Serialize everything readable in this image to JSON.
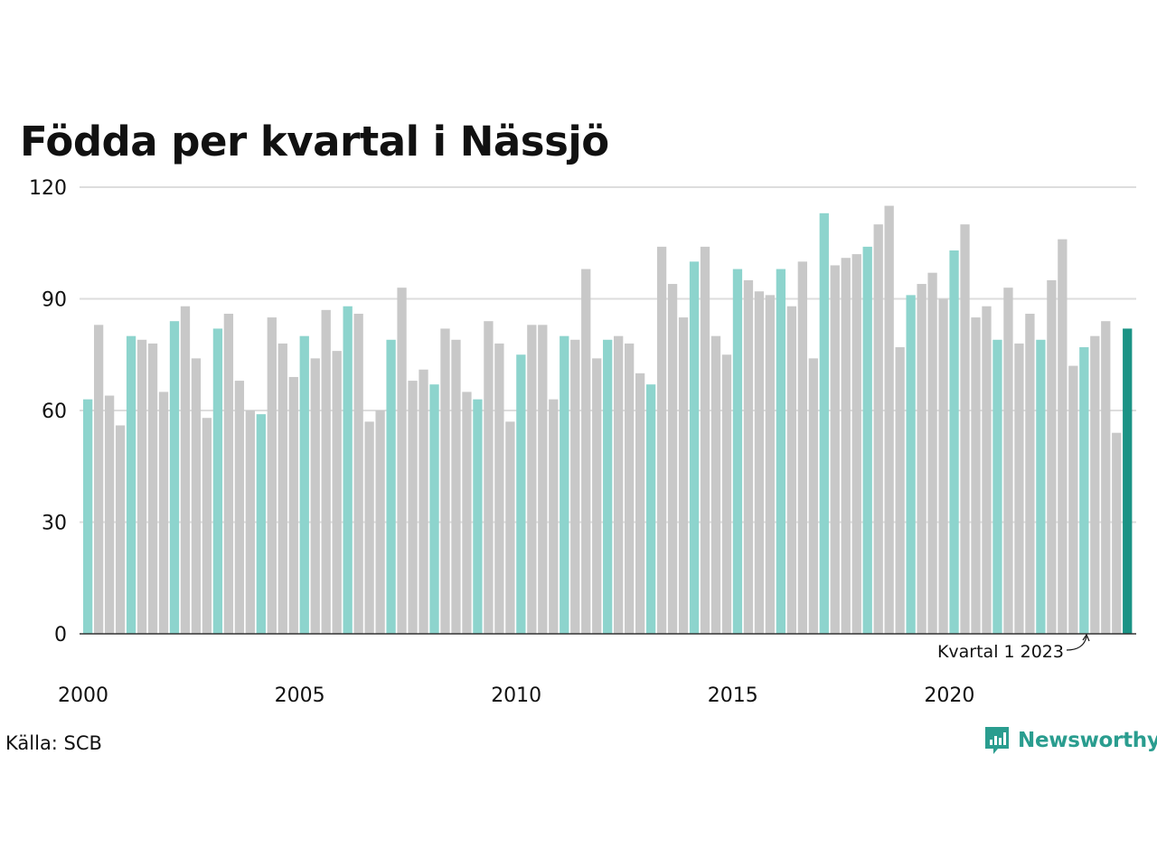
{
  "chart_data": {
    "type": "bar",
    "title": "Födda per kvartal i Nässjö",
    "ylim": [
      0,
      120
    ],
    "yticks": [
      "0",
      "30",
      "60",
      "90",
      "120"
    ],
    "xticks": [
      "2000",
      "2005",
      "2010",
      "2015",
      "2020"
    ],
    "grid": true,
    "colors": {
      "quarter1": "#8dd4cd",
      "other": "#c8c8c8",
      "latest": "#1b9385",
      "grid": "#dddddd",
      "axis": "#333333"
    },
    "annotation": "Kvartal 1 2023",
    "start_year": 2000,
    "values": [
      63,
      83,
      64,
      56,
      80,
      79,
      78,
      65,
      84,
      88,
      74,
      58,
      82,
      86,
      68,
      60,
      59,
      85,
      78,
      69,
      80,
      74,
      87,
      76,
      88,
      86,
      57,
      60,
      79,
      93,
      68,
      71,
      67,
      82,
      79,
      65,
      63,
      84,
      78,
      57,
      75,
      83,
      83,
      63,
      80,
      79,
      98,
      74,
      79,
      80,
      78,
      70,
      67,
      104,
      94,
      85,
      100,
      104,
      80,
      75,
      98,
      95,
      92,
      91,
      98,
      88,
      100,
      74,
      113,
      99,
      101,
      102,
      104,
      110,
      115,
      77,
      91,
      94,
      97,
      90,
      103,
      110,
      85,
      88,
      79,
      93,
      78,
      86,
      79,
      95,
      106,
      72,
      77,
      80,
      84,
      54,
      82
    ]
  },
  "footer": {
    "source": "Källa: SCB",
    "brand": "Newsworthy"
  }
}
